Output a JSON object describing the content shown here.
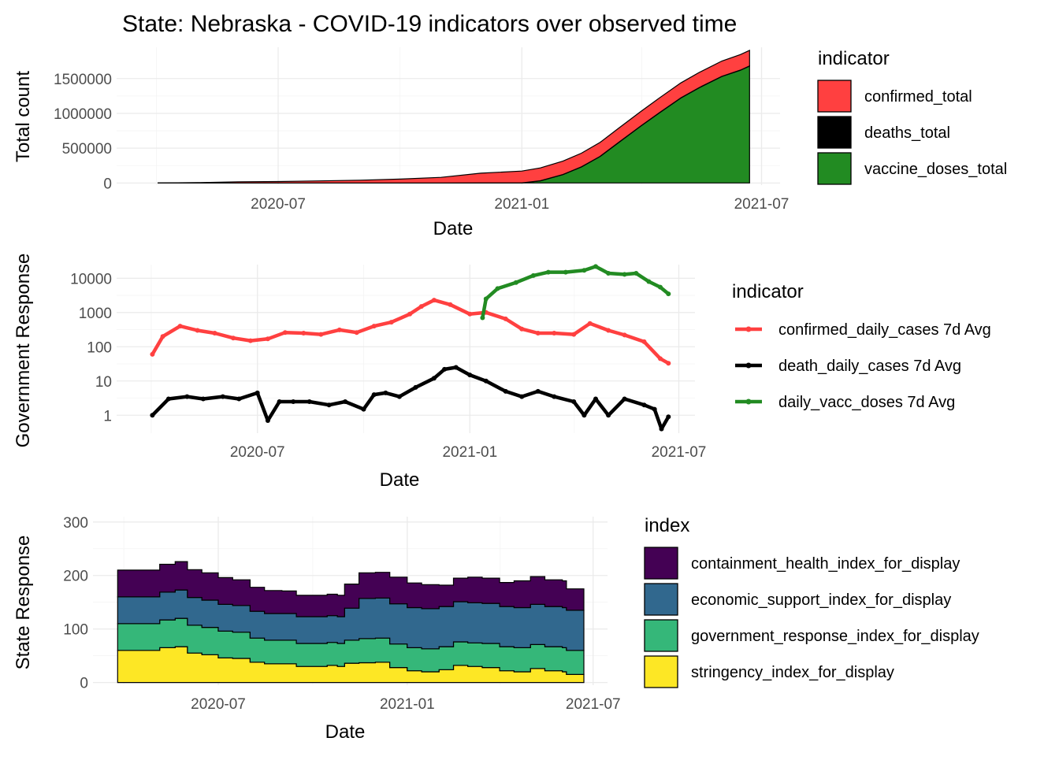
{
  "title": "State: Nebraska - COVID-19 indicators over observed time",
  "chart_data": [
    {
      "type": "area",
      "stacked": true,
      "xlabel": "Date",
      "ylabel": "Total count",
      "x_ticks": [
        "2020-07",
        "2021-01",
        "2021-07"
      ],
      "x_range": [
        "2020-03-01",
        "2021-07-15"
      ],
      "y_ticks": [
        0,
        500000,
        1000000,
        1500000
      ],
      "ylim": [
        -30000,
        1950000
      ],
      "grid": true,
      "legend": {
        "title": "indicator",
        "position": "right"
      },
      "x": [
        "2020-04-01",
        "2020-05-01",
        "2020-06-01",
        "2020-07-01",
        "2020-08-01",
        "2020-09-01",
        "2020-10-01",
        "2020-11-01",
        "2020-12-01",
        "2021-01-01",
        "2021-01-15",
        "2021-02-01",
        "2021-02-15",
        "2021-03-01",
        "2021-03-15",
        "2021-04-01",
        "2021-04-15",
        "2021-05-01",
        "2021-05-15",
        "2021-06-01",
        "2021-06-15",
        "2021-06-22"
      ],
      "series": [
        {
          "name": "vaccine_doses_total",
          "color": "#228B22",
          "values": [
            0,
            0,
            0,
            0,
            0,
            0,
            0,
            0,
            0,
            0,
            30000,
            120000,
            230000,
            380000,
            580000,
            820000,
            1010000,
            1220000,
            1370000,
            1530000,
            1620000,
            1680000
          ]
        },
        {
          "name": "deaths_total",
          "color": "#000000",
          "values": [
            10,
            80,
            170,
            290,
            400,
            550,
            700,
            850,
            1200,
            1600,
            1800,
            1950,
            2100,
            2200,
            2260,
            2300,
            2330,
            2350,
            2360,
            2370,
            2380,
            2385
          ]
        },
        {
          "name": "confirmed_total",
          "color": "#FF4040",
          "values": [
            500,
            5000,
            17000,
            21000,
            30000,
            40000,
            55000,
            80000,
            140000,
            170000,
            185000,
            192000,
            196000,
            200000,
            203000,
            207000,
            211000,
            215000,
            217000,
            220000,
            222000,
            223000
          ]
        }
      ]
    },
    {
      "type": "line",
      "y_scale": "log10",
      "xlabel": "Date",
      "ylabel": "Government Response",
      "x_ticks": [
        "2020-07",
        "2021-01",
        "2021-07"
      ],
      "x_range": [
        "2020-03-01",
        "2021-07-15"
      ],
      "y_ticks": [
        1,
        10,
        100,
        1000,
        10000
      ],
      "ylim": [
        0.3,
        25000
      ],
      "grid": true,
      "legend": {
        "title": "indicator",
        "position": "right"
      },
      "series": [
        {
          "name": "confirmed_daily_cases 7d Avg",
          "color": "#FF4040",
          "x": [
            "2020-04-01",
            "2020-04-10",
            "2020-04-25",
            "2020-05-10",
            "2020-05-25",
            "2020-06-10",
            "2020-06-25",
            "2020-07-10",
            "2020-07-25",
            "2020-08-10",
            "2020-08-25",
            "2020-09-10",
            "2020-09-25",
            "2020-10-10",
            "2020-10-25",
            "2020-11-10",
            "2020-11-20",
            "2020-12-01",
            "2020-12-15",
            "2021-01-01",
            "2021-01-15",
            "2021-02-01",
            "2021-02-15",
            "2021-03-01",
            "2021-03-15",
            "2021-04-01",
            "2021-04-15",
            "2021-05-01",
            "2021-05-15",
            "2021-06-01",
            "2021-06-15",
            "2021-06-22"
          ],
          "values": [
            60,
            200,
            400,
            300,
            250,
            180,
            150,
            170,
            260,
            250,
            230,
            310,
            260,
            400,
            520,
            900,
            1500,
            2300,
            1700,
            900,
            1000,
            650,
            330,
            250,
            250,
            230,
            480,
            300,
            220,
            140,
            45,
            33
          ]
        },
        {
          "name": "death_daily_cases 7d Avg",
          "color": "#000000",
          "x": [
            "2020-04-01",
            "2020-04-15",
            "2020-05-01",
            "2020-05-15",
            "2020-06-01",
            "2020-06-15",
            "2020-07-01",
            "2020-07-10",
            "2020-07-20",
            "2020-08-01",
            "2020-08-15",
            "2020-09-01",
            "2020-09-15",
            "2020-10-01",
            "2020-10-10",
            "2020-10-20",
            "2020-11-01",
            "2020-11-15",
            "2020-12-01",
            "2020-12-10",
            "2020-12-20",
            "2021-01-01",
            "2021-01-15",
            "2021-02-01",
            "2021-02-15",
            "2021-03-01",
            "2021-03-15",
            "2021-04-01",
            "2021-04-10",
            "2021-04-20",
            "2021-05-01",
            "2021-05-15",
            "2021-06-01",
            "2021-06-10",
            "2021-06-16",
            "2021-06-22"
          ],
          "values": [
            1,
            3,
            3.5,
            3,
            3.5,
            3,
            4.5,
            0.7,
            2.5,
            2.5,
            2.5,
            2,
            2.5,
            1.5,
            4,
            4.5,
            3.5,
            6.5,
            12,
            22,
            25,
            15,
            10,
            5,
            3.5,
            5,
            3.5,
            2.5,
            1,
            3,
            1,
            3,
            2,
            1.5,
            0.4,
            0.9
          ]
        },
        {
          "name": "daily_vacc_doses 7d Avg",
          "color": "#228B22",
          "x": [
            "2021-01-12",
            "2021-01-15",
            "2021-01-25",
            "2021-02-10",
            "2021-02-25",
            "2021-03-10",
            "2021-03-25",
            "2021-04-10",
            "2021-04-20",
            "2021-05-01",
            "2021-05-15",
            "2021-05-25",
            "2021-06-05",
            "2021-06-15",
            "2021-06-22"
          ],
          "values": [
            700,
            2500,
            5000,
            7500,
            12000,
            15000,
            15000,
            17000,
            22000,
            14000,
            13000,
            14000,
            8000,
            5500,
            3500
          ]
        }
      ]
    },
    {
      "type": "area",
      "stacked": true,
      "xlabel": "Date",
      "ylabel": "State Response",
      "x_ticks": [
        "2020-07",
        "2021-01",
        "2021-07"
      ],
      "x_range": [
        "2020-03-01",
        "2021-07-15"
      ],
      "y_ticks": [
        0,
        100,
        200,
        300
      ],
      "ylim": [
        -5,
        310
      ],
      "grid": true,
      "legend": {
        "title": "index",
        "position": "right"
      },
      "x": [
        "2020-03-25",
        "2020-04-20",
        "2020-05-05",
        "2020-05-20",
        "2020-06-01",
        "2020-06-15",
        "2020-07-01",
        "2020-07-15",
        "2020-08-01",
        "2020-08-15",
        "2020-09-01",
        "2020-09-15",
        "2020-10-01",
        "2020-10-15",
        "2020-10-25",
        "2020-11-01",
        "2020-11-15",
        "2020-12-01",
        "2020-12-15",
        "2021-01-01",
        "2021-01-15",
        "2021-02-01",
        "2021-02-15",
        "2021-03-01",
        "2021-03-15",
        "2021-04-01",
        "2021-04-15",
        "2021-05-01",
        "2021-05-15",
        "2021-06-01",
        "2021-06-05",
        "2021-06-22"
      ],
      "series": [
        {
          "name": "stringency_index_for_display",
          "color": "#FDE725",
          "values": [
            60,
            60,
            65,
            67,
            55,
            52,
            46,
            45,
            38,
            35,
            35,
            30,
            30,
            32,
            30,
            36,
            37,
            38,
            28,
            22,
            20,
            24,
            32,
            30,
            28,
            22,
            20,
            26,
            22,
            20,
            15,
            15
          ]
        },
        {
          "name": "government_response_index_for_display",
          "color": "#35B779",
          "values": [
            50,
            50,
            52,
            53,
            52,
            51,
            50,
            49,
            45,
            44,
            44,
            43,
            43,
            43,
            43,
            43,
            45,
            45,
            44,
            43,
            43,
            43,
            44,
            44,
            45,
            45,
            45,
            45,
            45,
            45,
            45,
            45
          ]
        },
        {
          "name": "economic_support_index_for_display",
          "color": "#31688E",
          "values": [
            50,
            50,
            52,
            53,
            52,
            51,
            50,
            50,
            50,
            50,
            50,
            50,
            50,
            50,
            50,
            60,
            75,
            75,
            75,
            75,
            75,
            75,
            75,
            75,
            75,
            75,
            75,
            75,
            75,
            75,
            75,
            75
          ]
        },
        {
          "name": "containment_health_index_for_display",
          "color": "#440154",
          "values": [
            50,
            50,
            52,
            53,
            52,
            51,
            50,
            48,
            45,
            43,
            42,
            40,
            40,
            40,
            40,
            45,
            48,
            48,
            50,
            46,
            45,
            40,
            44,
            48,
            47,
            45,
            50,
            52,
            50,
            50,
            40,
            40
          ]
        }
      ]
    }
  ]
}
